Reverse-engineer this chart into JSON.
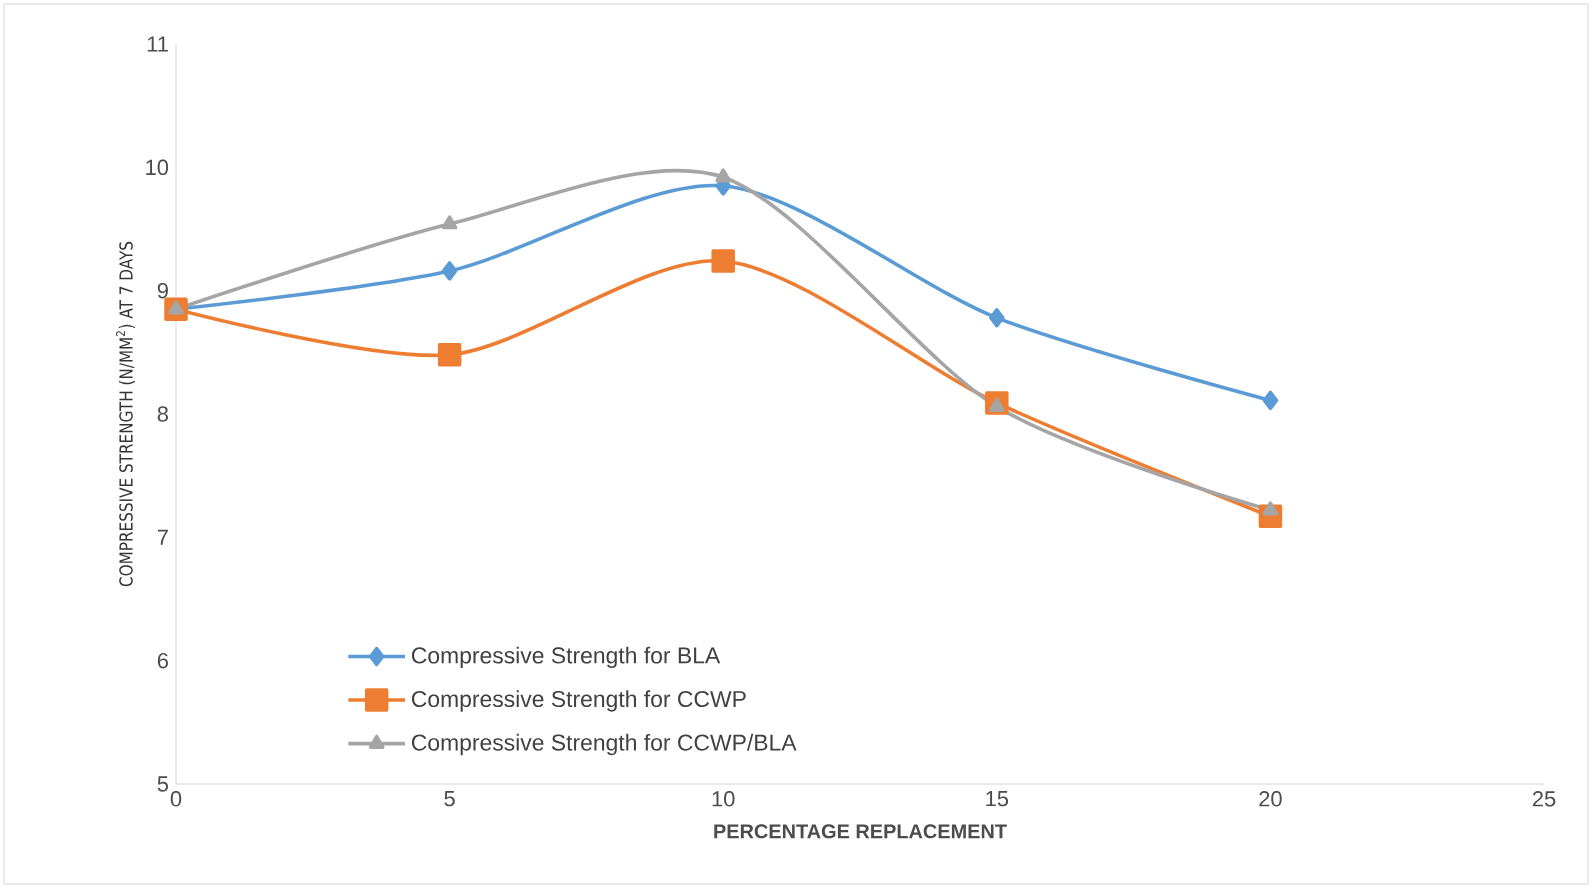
{
  "chart_data": {
    "type": "line",
    "xlabel": "PERCENTAGE REPLACEMENT",
    "ylabel": "COMPRESSIVE STRENGTH (N/MM$^{2}$) AT 7 DAYS",
    "x": [
      0,
      5,
      10,
      15,
      20
    ],
    "series": [
      {
        "name": "Compressive Strength for BLA",
        "color": "#5b9bd5",
        "marker": "diamond",
        "values": [
          8.85,
          9.16,
          9.85,
          8.78,
          8.11
        ]
      },
      {
        "name": "Compressive Strength for CCWP",
        "color": "#ed7d31",
        "marker": "square",
        "values": [
          8.85,
          8.48,
          9.24,
          8.09,
          7.17
        ]
      },
      {
        "name": "Compressive Strength for CCWP/BLA",
        "color": "#a5a5a5",
        "marker": "triangle",
        "values": [
          8.85,
          9.54,
          9.92,
          8.06,
          7.22
        ]
      }
    ],
    "xlim": [
      0,
      25
    ],
    "xticks": [
      0,
      5,
      10,
      15,
      20,
      25
    ],
    "ylim": [
      5,
      11
    ],
    "yticks": [
      5,
      6,
      7,
      8,
      9,
      10,
      11
    ],
    "grid": false,
    "legend": "bottom"
  }
}
